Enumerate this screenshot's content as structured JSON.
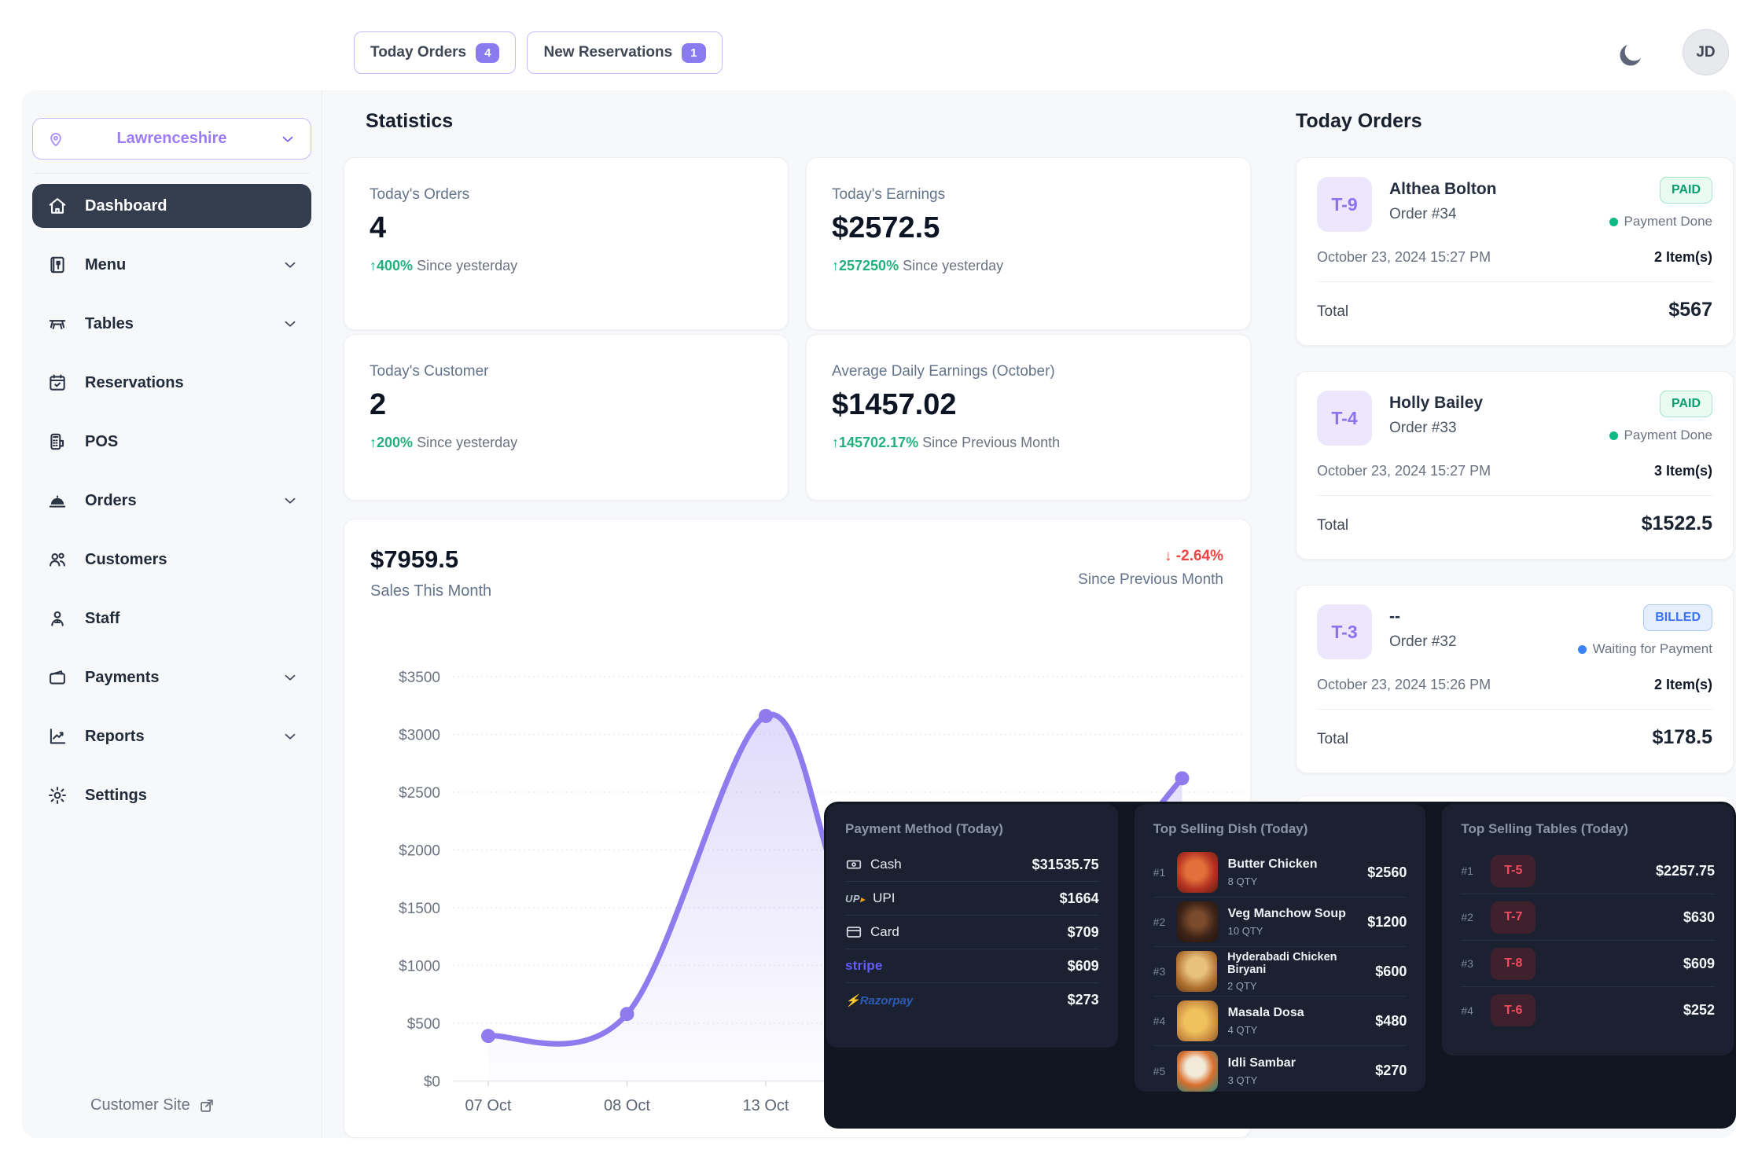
{
  "header": {
    "orders_chip": {
      "label": "Today Orders",
      "count": "4"
    },
    "reservations_chip": {
      "label": "New Reservations",
      "count": "1"
    },
    "avatar_initials": "JD"
  },
  "sidebar": {
    "location": "Lawrenceshire",
    "items": [
      {
        "label": "Dashboard",
        "active": true
      },
      {
        "label": "Menu",
        "expandable": true
      },
      {
        "label": "Tables",
        "expandable": true
      },
      {
        "label": "Reservations"
      },
      {
        "label": "POS"
      },
      {
        "label": "Orders",
        "expandable": true
      },
      {
        "label": "Customers"
      },
      {
        "label": "Staff"
      },
      {
        "label": "Payments",
        "expandable": true
      },
      {
        "label": "Reports",
        "expandable": true
      },
      {
        "label": "Settings"
      }
    ],
    "customer_site": "Customer Site"
  },
  "stats": {
    "title": "Statistics",
    "cards": [
      {
        "label": "Today's Orders",
        "value": "4",
        "arrow": "↑",
        "delta": "400%",
        "note": "Since yesterday"
      },
      {
        "label": "Today's Earnings",
        "value": "$2572.5",
        "arrow": "↑",
        "delta": "257250%",
        "note": "Since yesterday"
      },
      {
        "label": "Today's Customer",
        "value": "2",
        "arrow": "↑",
        "delta": "200%",
        "note": "Since yesterday"
      },
      {
        "label": "Average Daily Earnings (October)",
        "value": "$1457.02",
        "arrow": "↑",
        "delta": "145702.17%",
        "note": "Since Previous Month"
      }
    ]
  },
  "chart_data": {
    "type": "area",
    "total_label": "$7959.5",
    "subtitle": "Sales This Month",
    "delta_arrow": "↓",
    "delta": "-2.64%",
    "delta_note": "Since Previous Month",
    "ylabel_prefix": "$",
    "ylim": [
      0,
      3500
    ],
    "y_tick_step": 500,
    "y_ticks": [
      "$0",
      "$500",
      "$1000",
      "$1500",
      "$2000",
      "$2500",
      "$3000",
      "$3500"
    ],
    "x_ticks": [
      "07 Oct",
      "08 Oct",
      "13 Oct"
    ],
    "grid": true,
    "line_color": "#8f7bee",
    "points": [
      {
        "x": 0,
        "value": 390
      },
      {
        "x": 1,
        "value": 580
      },
      {
        "x": 2,
        "value": 3160
      },
      {
        "x": 2.6,
        "value": 1500,
        "hidden": true,
        "estimated": true
      },
      {
        "x": 3.4,
        "value": 480,
        "hidden": true,
        "estimated": true
      },
      {
        "x": 5,
        "value": 2620,
        "estimated": true
      }
    ]
  },
  "today_orders": {
    "title": "Today Orders",
    "orders": [
      {
        "table": "T-9",
        "customer": "Althea Bolton",
        "order_no": "Order #34",
        "status": "PAID",
        "payment_note": "Payment Done",
        "datetime": "October 23, 2024 15:27 PM",
        "items": "2 Item(s)",
        "total_label": "Total",
        "total": "$567"
      },
      {
        "table": "T-4",
        "customer": "Holly Bailey",
        "order_no": "Order #33",
        "status": "PAID",
        "payment_note": "Payment Done",
        "datetime": "October 23, 2024 15:27 PM",
        "items": "3 Item(s)",
        "total_label": "Total",
        "total": "$1522.5"
      },
      {
        "table": "T-3",
        "customer": "--",
        "order_no": "Order #32",
        "status": "BILLED",
        "payment_note": "Waiting for Payment",
        "datetime": "October 23, 2024 15:26 PM",
        "items": "2 Item(s)",
        "total_label": "Total",
        "total": "$178.5"
      }
    ]
  },
  "panels": {
    "payment": {
      "title": "Payment Method (Today)",
      "rows": [
        {
          "method": "Cash",
          "amount": "$31535.75"
        },
        {
          "method": "UPI",
          "amount": "$1664"
        },
        {
          "method": "Card",
          "amount": "$709"
        },
        {
          "method": "stripe",
          "amount": "$609"
        },
        {
          "method": "Razorpay",
          "amount": "$273"
        }
      ]
    },
    "dishes": {
      "title": "Top Selling Dish (Today)",
      "rows": [
        {
          "rank": "#1",
          "name": "Butter Chicken",
          "qty": "8 QTY",
          "price": "$2560"
        },
        {
          "rank": "#2",
          "name": "Veg Manchow Soup",
          "qty": "10 QTY",
          "price": "$1200"
        },
        {
          "rank": "#3",
          "name": "Hyderabadi Chicken Biryani",
          "qty": "2 QTY",
          "price": "$600"
        },
        {
          "rank": "#4",
          "name": "Masala Dosa",
          "qty": "4 QTY",
          "price": "$480"
        },
        {
          "rank": "#5",
          "name": "Idli Sambar",
          "qty": "3 QTY",
          "price": "$270"
        }
      ]
    },
    "tables": {
      "title": "Top Selling Tables (Today)",
      "rows": [
        {
          "rank": "#1",
          "table": "T-5",
          "amount": "$2257.75"
        },
        {
          "rank": "#2",
          "table": "T-7",
          "amount": "$630"
        },
        {
          "rank": "#3",
          "table": "T-8",
          "amount": "$609"
        },
        {
          "rank": "#4",
          "table": "T-6",
          "amount": "$252"
        }
      ]
    }
  },
  "colors": {
    "accent": "#8b5cf6",
    "green": "#10b981",
    "red": "#ef4444",
    "blue": "#3b82f6",
    "stripe": "#635bff",
    "razorpay": "#2a5cb8",
    "dark_panel": "#1b2130"
  }
}
